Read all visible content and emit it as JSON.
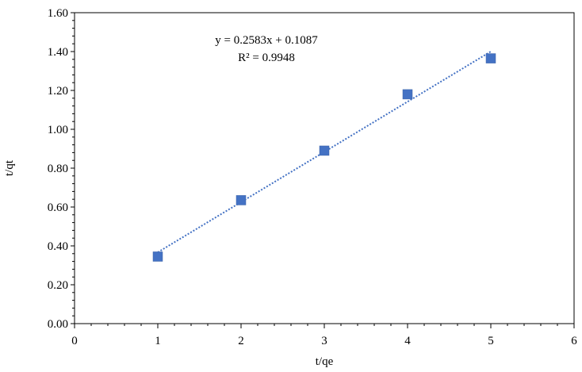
{
  "chart_data": {
    "type": "scatter",
    "xlabel": "t/qe",
    "ylabel": "t/qt",
    "xlim": [
      0,
      6
    ],
    "ylim": [
      0,
      1.6
    ],
    "x_ticks": [
      0,
      1,
      2,
      3,
      4,
      5,
      6
    ],
    "x_tick_labels": [
      "0",
      "1",
      "2",
      "3",
      "4",
      "5",
      "6"
    ],
    "y_ticks": [
      0,
      0.2,
      0.4,
      0.6,
      0.8,
      1.0,
      1.2,
      1.4,
      1.6
    ],
    "y_tick_labels": [
      "0.00",
      "0.20",
      "0.40",
      "0.60",
      "0.80",
      "1.00",
      "1.20",
      "1.40",
      "1.60"
    ],
    "grid": false,
    "legend": "none",
    "series": [
      {
        "x": [
          1,
          2,
          3,
          4,
          5
        ],
        "y": [
          0.345,
          0.635,
          0.89,
          1.18,
          1.365
        ],
        "marker": "square",
        "color": "#4472C4"
      }
    ],
    "trendline": {
      "type": "linear",
      "slope": 0.2583,
      "intercept": 0.1087,
      "x_range": [
        1,
        5
      ],
      "style": "dotted",
      "color": "#4472C4"
    },
    "annotations": {
      "equation": "y = 0.2583x + 0.1087",
      "r_squared": "R² = 0.9948"
    }
  }
}
